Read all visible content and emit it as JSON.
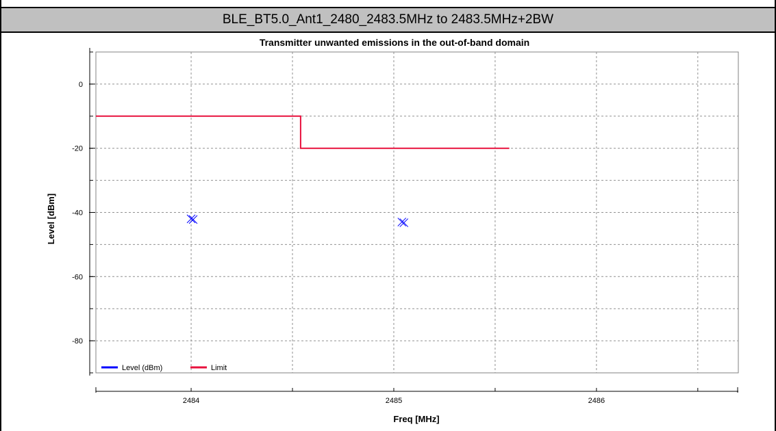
{
  "header": {
    "title": "BLE_BT5.0_Ant1_2480_2483.5MHz to 2483.5MHz+2BW"
  },
  "chart_data": {
    "type": "line",
    "title": "Transmitter unwanted emissions in the out-of-band domain",
    "xlabel": "Freq [MHz]",
    "ylabel": "Level [dBm]",
    "xlim": [
      2483.53,
      2486.7
    ],
    "ylim": [
      -90,
      10
    ],
    "x_ticks": [
      2484,
      2485,
      2486
    ],
    "y_ticks": [
      0,
      -20,
      -40,
      -60,
      -80
    ],
    "grid": true,
    "legend_placement": "bottom-left",
    "series": [
      {
        "name": "Level (dBm)",
        "color": "#0000ff",
        "marker": "x",
        "points": [
          [
            2484.01,
            -42
          ],
          [
            2485.05,
            -43
          ]
        ]
      },
      {
        "name": "Limit",
        "color": "#e8103c",
        "points": [
          [
            2483.53,
            -10
          ],
          [
            2484.54,
            -10
          ],
          [
            2484.54,
            -20
          ],
          [
            2485.57,
            -20
          ]
        ]
      }
    ]
  }
}
